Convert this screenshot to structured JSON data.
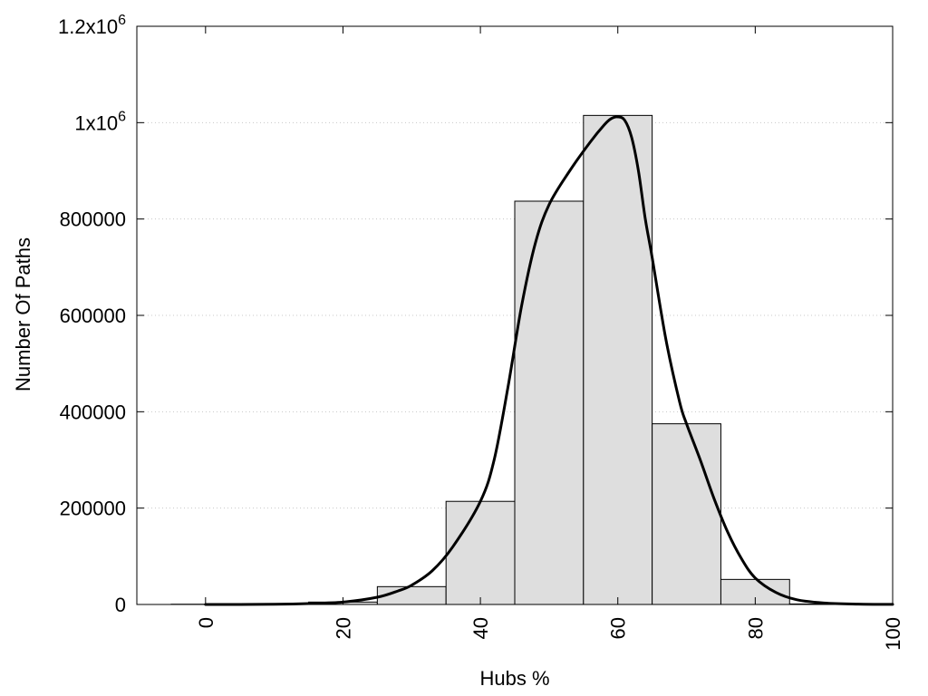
{
  "chart_data": {
    "type": "bar",
    "title": "",
    "xlabel": "Hubs %",
    "ylabel": "Number Of Paths",
    "xlim": [
      -10,
      100
    ],
    "ylim": [
      0,
      1200000
    ],
    "x_ticks": [
      {
        "value": 0,
        "label": "0"
      },
      {
        "value": 20,
        "label": "20"
      },
      {
        "value": 40,
        "label": "40"
      },
      {
        "value": 60,
        "label": "60"
      },
      {
        "value": 80,
        "label": "80"
      },
      {
        "value": 100,
        "label": "100"
      }
    ],
    "y_ticks": [
      {
        "value": 0,
        "label": "0"
      },
      {
        "value": 200000,
        "label": "200000"
      },
      {
        "value": 400000,
        "label": "400000"
      },
      {
        "value": 600000,
        "label": "600000"
      },
      {
        "value": 800000,
        "label": "800000"
      },
      {
        "value": 1000000,
        "label": "1x10",
        "sup": "6"
      },
      {
        "value": 1200000,
        "label": "1.2x10",
        "sup": "6"
      }
    ],
    "grid": true,
    "bin_width": 10,
    "bins": [
      {
        "center": 0,
        "value": 500
      },
      {
        "center": 10,
        "value": 800
      },
      {
        "center": 20,
        "value": 5000
      },
      {
        "center": 30,
        "value": 37000
      },
      {
        "center": 40,
        "value": 214000
      },
      {
        "center": 50,
        "value": 837000
      },
      {
        "center": 60,
        "value": 1015000
      },
      {
        "center": 70,
        "value": 375000
      },
      {
        "center": 80,
        "value": 52000
      },
      {
        "center": 90,
        "value": 1000
      }
    ],
    "curve": {
      "x": [
        0,
        5,
        10,
        15,
        20,
        25,
        28,
        30,
        33,
        36,
        40,
        42,
        44,
        46,
        48,
        50,
        53,
        56,
        58,
        59,
        60,
        61,
        62,
        63,
        64,
        65,
        67,
        69,
        70,
        72,
        74,
        76,
        78,
        80,
        83,
        86,
        90,
        95,
        100
      ],
      "y": [
        0,
        100,
        500,
        2000,
        5000,
        15000,
        28000,
        40000,
        70000,
        120000,
        214000,
        300000,
        450000,
        620000,
        750000,
        830000,
        900000,
        960000,
        995000,
        1008000,
        1012000,
        1005000,
        970000,
        900000,
        800000,
        720000,
        550000,
        420000,
        375000,
        300000,
        220000,
        150000,
        95000,
        55000,
        25000,
        10000,
        3000,
        800,
        200
      ]
    },
    "colors": {
      "bar_fill": "#dedede",
      "bar_stroke": "#000000",
      "curve": "#000000",
      "grid": "#c8c8c8",
      "axis": "#000000"
    }
  }
}
